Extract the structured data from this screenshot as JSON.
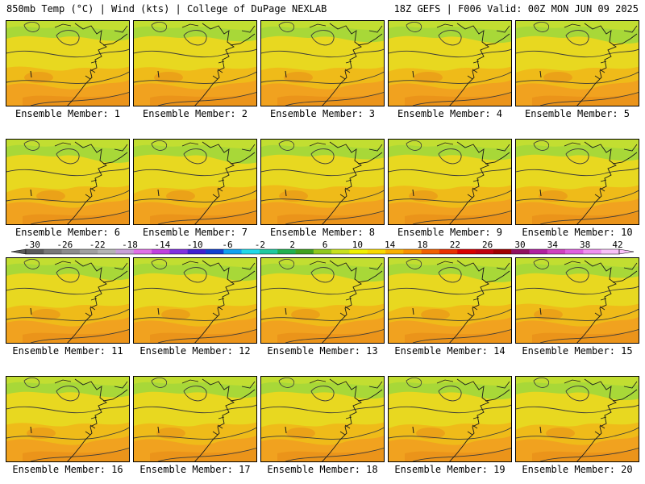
{
  "header": {
    "left": "850mb Temp (°C) | Wind (kts) | College of DuPage NEXLAB",
    "right": "18Z GEFS | F006 Valid: 00Z MON JUN 09 2025"
  },
  "panels": [
    "Ensemble Member: 1",
    "Ensemble Member: 2",
    "Ensemble Member: 3",
    "Ensemble Member: 4",
    "Ensemble Member: 5",
    "Ensemble Member: 6",
    "Ensemble Member: 7",
    "Ensemble Member: 8",
    "Ensemble Member: 9",
    "Ensemble Member: 10",
    "Ensemble Member: 11",
    "Ensemble Member: 12",
    "Ensemble Member: 13",
    "Ensemble Member: 14",
    "Ensemble Member: 15",
    "Ensemble Member: 16",
    "Ensemble Member: 17",
    "Ensemble Member: 18",
    "Ensemble Member: 19",
    "Ensemble Member: 20"
  ],
  "colorbar": {
    "labels": [
      "-30",
      "-26",
      "-22",
      "-18",
      "-14",
      "-10",
      "-6",
      "-2",
      "2",
      "6",
      "10",
      "14",
      "18",
      "22",
      "26",
      "30",
      "34",
      "38",
      "42"
    ],
    "colors": [
      "#5a5a5a",
      "#787878",
      "#8c8c8c",
      "#a0a0a0",
      "#b4b4b4",
      "#c8a0d8",
      "#e070e8",
      "#c040e0",
      "#8030e0",
      "#4020d0",
      "#1040d0",
      "#10a0f0",
      "#20d8e8",
      "#20c8a0",
      "#20b050",
      "#40a020",
      "#90c820",
      "#c8e020",
      "#f0f000",
      "#f8d800",
      "#f8b000",
      "#f89000",
      "#f06000",
      "#e83000",
      "#d80000",
      "#c00010",
      "#a00000",
      "#901060",
      "#b020a0",
      "#d040c0",
      "#e060e0",
      "#f090f0",
      "#f8c0f8"
    ]
  },
  "palette": {
    "green": "#a8d838",
    "lightgreen": "#c8e030",
    "yellow": "#e8d820",
    "gold": "#f0b818",
    "orange": "#f0a020",
    "darkorange": "#e88a18"
  }
}
